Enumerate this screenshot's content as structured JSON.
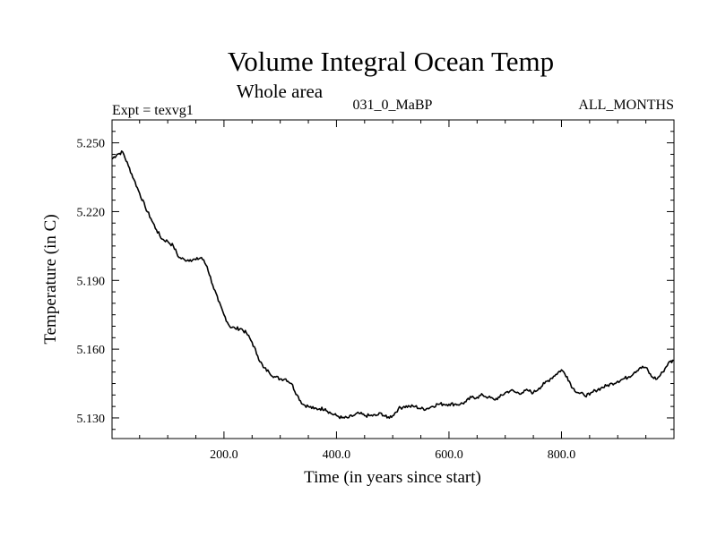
{
  "chart_data": {
    "type": "line",
    "title": "Volume Integral Ocean Temp",
    "subtitle": "Whole area",
    "experiment_label": "Expt = texvg1",
    "run_label": "031_0_MaBP",
    "months_label": "ALL_MONTHS",
    "xlabel": "Time (in years since start)",
    "ylabel": "Temperature (in C)",
    "xlim": [
      1,
      1000
    ],
    "ylim": [
      5.121,
      5.26
    ],
    "x_ticks": [
      {
        "value": 200,
        "label": "200.0"
      },
      {
        "value": 400,
        "label": "400.0"
      },
      {
        "value": 600,
        "label": "600.0"
      },
      {
        "value": 800,
        "label": "800.0"
      }
    ],
    "y_ticks": [
      {
        "value": 5.13,
        "label": "5.130"
      },
      {
        "value": 5.16,
        "label": "5.160"
      },
      {
        "value": 5.19,
        "label": "5.190"
      },
      {
        "value": 5.22,
        "label": "5.220"
      },
      {
        "value": 5.25,
        "label": "5.250"
      }
    ],
    "grid": false,
    "series": [
      {
        "name": "Volume Integral Ocean Temp",
        "color": "#000000",
        "x": [
          1,
          10,
          20,
          30,
          40,
          50,
          60,
          70,
          80,
          90,
          100,
          110,
          120,
          130,
          140,
          150,
          160,
          170,
          180,
          190,
          200,
          210,
          220,
          230,
          240,
          250,
          260,
          270,
          280,
          290,
          300,
          310,
          320,
          330,
          340,
          350,
          360,
          370,
          380,
          390,
          400,
          410,
          420,
          430,
          440,
          450,
          460,
          470,
          480,
          490,
          500,
          510,
          520,
          530,
          540,
          550,
          560,
          570,
          580,
          590,
          600,
          610,
          620,
          630,
          640,
          650,
          660,
          670,
          680,
          690,
          700,
          710,
          720,
          730,
          740,
          750,
          760,
          770,
          780,
          790,
          800,
          810,
          820,
          830,
          840,
          850,
          860,
          870,
          880,
          890,
          900,
          910,
          920,
          930,
          940,
          950,
          960,
          970,
          980,
          990,
          1000
        ],
        "values": [
          5.243,
          5.245,
          5.246,
          5.24,
          5.234,
          5.228,
          5.222,
          5.217,
          5.212,
          5.208,
          5.207,
          5.205,
          5.2,
          5.199,
          5.199,
          5.199,
          5.2,
          5.196,
          5.188,
          5.181,
          5.175,
          5.17,
          5.169,
          5.169,
          5.167,
          5.163,
          5.157,
          5.152,
          5.15,
          5.148,
          5.147,
          5.147,
          5.145,
          5.14,
          5.136,
          5.135,
          5.134,
          5.134,
          5.134,
          5.132,
          5.131,
          5.13,
          5.13,
          5.131,
          5.132,
          5.131,
          5.131,
          5.131,
          5.132,
          5.13,
          5.131,
          5.134,
          5.135,
          5.135,
          5.135,
          5.134,
          5.134,
          5.135,
          5.136,
          5.136,
          5.136,
          5.136,
          5.136,
          5.137,
          5.139,
          5.139,
          5.14,
          5.139,
          5.138,
          5.139,
          5.141,
          5.142,
          5.141,
          5.141,
          5.142,
          5.141,
          5.143,
          5.145,
          5.147,
          5.149,
          5.151,
          5.148,
          5.143,
          5.141,
          5.14,
          5.14,
          5.142,
          5.143,
          5.144,
          5.145,
          5.146,
          5.147,
          5.148,
          5.15,
          5.152,
          5.152,
          5.148,
          5.147,
          5.15,
          5.154,
          5.155
        ]
      }
    ]
  }
}
